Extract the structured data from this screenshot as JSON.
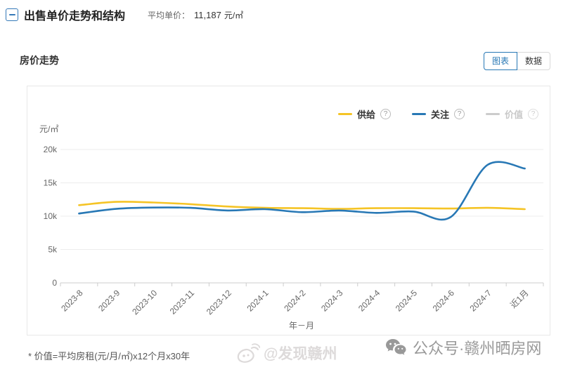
{
  "header": {
    "title": "出售单价走势和结构",
    "avg_label": "平均单价：",
    "avg_value": "11,187",
    "avg_unit": "元/㎡"
  },
  "section": {
    "title": "房价走势",
    "view_toggle": {
      "chart_label": "图表",
      "data_label": "数据",
      "active": "图表"
    }
  },
  "chart_data": {
    "type": "line",
    "title": "房价走势",
    "unit_label": "元/㎡",
    "xlabel": "年－月",
    "categories": [
      "2023-8",
      "2023-9",
      "2023-10",
      "2023-11",
      "2023-12",
      "2024-1",
      "2024-2",
      "2024-3",
      "2024-4",
      "2024-5",
      "2024-6",
      "2024-7",
      "近1月"
    ],
    "series": [
      {
        "name": "供给",
        "color": "#f5c426",
        "disabled": false,
        "values": [
          11650,
          12150,
          12050,
          11800,
          11450,
          11250,
          11200,
          11100,
          11200,
          11200,
          11150,
          11250,
          11050
        ]
      },
      {
        "name": "关注",
        "color": "#2878b5",
        "disabled": false,
        "values": [
          10400,
          11100,
          11300,
          11250,
          10850,
          11050,
          10600,
          10850,
          10500,
          10700,
          9850,
          17700,
          17150
        ]
      },
      {
        "name": "价值",
        "color": "#cccccc",
        "disabled": true,
        "values": []
      }
    ],
    "y_axis": {
      "min": 0,
      "max": 20000,
      "ticks": [
        {
          "label": "20k",
          "value": 20000
        },
        {
          "label": "15k",
          "value": 15000
        },
        {
          "label": "10k",
          "value": 10000
        },
        {
          "label": "5k",
          "value": 5000
        },
        {
          "label": "0",
          "value": 0
        }
      ]
    },
    "grid": true,
    "legend_position": "top-right",
    "legend_help_icon": "?"
  },
  "footnote": "* 价值=平均房租(元/月/㎡)x12个月x30年",
  "watermarks": {
    "weibo": "@发现赣州",
    "wechat": "公众号·赣州晒房网"
  }
}
